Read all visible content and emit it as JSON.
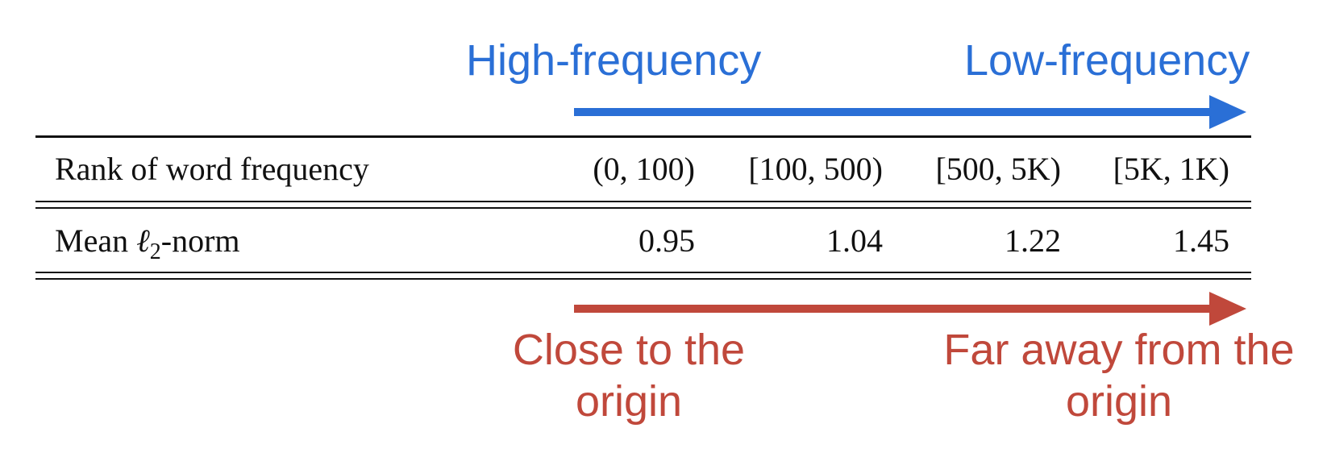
{
  "top_labels": {
    "left": "High-frequency",
    "right": "Low-frequency"
  },
  "bottom_labels": {
    "left_line1": "Close to the",
    "left_line2": "origin",
    "right_line1": "Far away from the",
    "right_line2": "origin"
  },
  "colors": {
    "blue": "#2a6fd6",
    "red": "#c0483b"
  },
  "table": {
    "rows": [
      {
        "label": "Rank of word frequency",
        "cells": [
          "(0, 100)",
          "[100, 500)",
          "[500, 5K)",
          "[5K, 1K)"
        ]
      },
      {
        "label_prefix": "Mean ",
        "label_math": "ℓ",
        "label_sub": "2",
        "label_suffix": "-norm",
        "cells": [
          "0.95",
          "1.04",
          "1.22",
          "1.45"
        ]
      }
    ]
  }
}
